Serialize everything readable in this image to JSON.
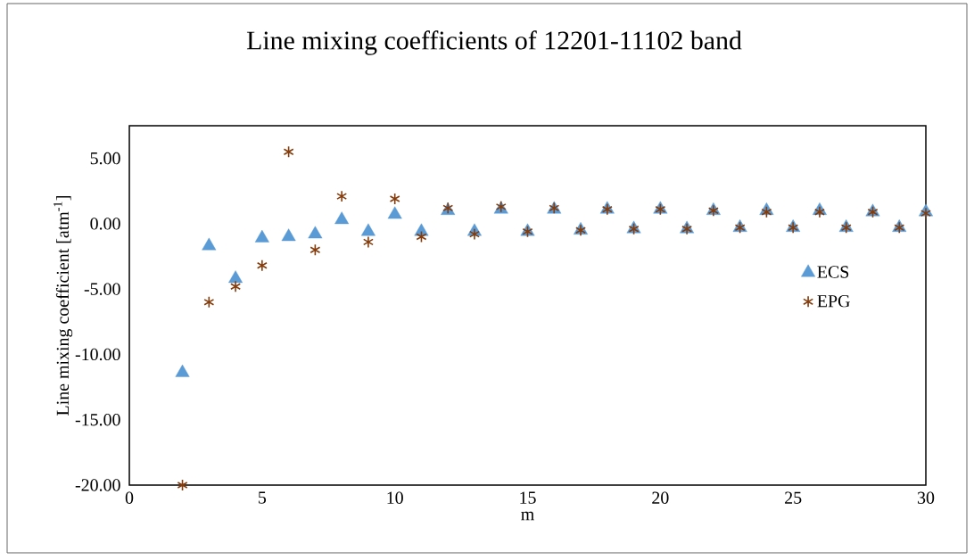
{
  "chart_data": {
    "type": "scatter",
    "title": "Line mixing coefficients of 12201-11102  band",
    "xlabel": "m",
    "ylabel": "Line mixing coefficient [atm$^{-1}$]",
    "x": [
      2,
      3,
      4,
      5,
      6,
      7,
      8,
      9,
      10,
      11,
      12,
      13,
      14,
      15,
      16,
      17,
      18,
      19,
      20,
      21,
      22,
      23,
      24,
      25,
      26,
      27,
      28,
      29,
      30
    ],
    "series": [
      {
        "name": "ECS",
        "color": "#5b9bd5",
        "marker": "triangle",
        "values": [
          -11.4,
          -1.7,
          -4.2,
          -1.1,
          -1.0,
          -0.8,
          0.3,
          -0.6,
          0.7,
          -0.6,
          1.0,
          -0.6,
          1.1,
          -0.6,
          1.1,
          -0.5,
          1.1,
          -0.4,
          1.1,
          -0.4,
          1.0,
          -0.3,
          1.0,
          -0.3,
          1.0,
          -0.3,
          0.9,
          -0.3,
          0.9
        ]
      },
      {
        "name": "EPG",
        "color": "#843c0c",
        "marker": "cross",
        "values": [
          -20.0,
          -6.0,
          -4.8,
          -3.2,
          5.5,
          -2.0,
          2.1,
          -1.4,
          1.9,
          -1.0,
          1.2,
          -0.8,
          1.3,
          -0.6,
          1.2,
          -0.5,
          1.1,
          -0.4,
          1.1,
          -0.4,
          1.0,
          -0.3,
          0.9,
          -0.3,
          0.9,
          -0.3,
          0.9,
          -0.3,
          0.8
        ]
      }
    ],
    "xlim": [
      0,
      30
    ],
    "xticks": [
      0,
      5,
      10,
      15,
      20,
      25,
      30
    ],
    "ylim": [
      -20,
      7.5
    ],
    "yticks": [
      {
        "value": -20,
        "label": "-20.00"
      },
      {
        "value": -15,
        "label": "-15.00"
      },
      {
        "value": -10,
        "label": "-10.00"
      },
      {
        "value": -5,
        "label": "-5.00"
      },
      {
        "value": 0,
        "label": "0.00"
      },
      {
        "value": 5,
        "label": "5.00"
      }
    ],
    "grid": false,
    "legend": "right"
  }
}
